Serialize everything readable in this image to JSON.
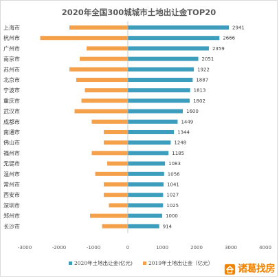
{
  "chart_data": {
    "type": "bar",
    "orientation": "horizontal",
    "title": "2020年全国300城城市土地出让金TOP20",
    "categories": [
      "上海市",
      "杭州市",
      "广州市",
      "南京市",
      "苏州市",
      "北京市",
      "宁波市",
      "重庆市",
      "武汉市",
      "成都市",
      "南通市",
      "佛山市",
      "福州市",
      "无锡市",
      "温州市",
      "常州市",
      "西安市",
      "深圳市",
      "郑州市",
      "长沙市"
    ],
    "series": [
      {
        "name": "2020年土地出让金(亿元)",
        "color": "#3c9dbd",
        "values": [
          2941,
          2666,
          2359,
          2051,
          1922,
          1887,
          1813,
          1802,
          1600,
          1449,
          1344,
          1248,
          1185,
          1083,
          1056,
          1041,
          1027,
          1025,
          1000,
          914
        ]
      },
      {
        "name": "2019年土地出让金（亿元）",
        "color": "#f5a04a",
        "values": [
          -1700,
          -2550,
          -1200,
          -1400,
          -1700,
          -1500,
          -1250,
          -1350,
          -1550,
          -1050,
          -700,
          -700,
          -1050,
          -600,
          -950,
          -700,
          -700,
          -550,
          -1100,
          -750
        ]
      }
    ],
    "xlim": [
      -3000,
      4000
    ],
    "xticks": [
      -3000,
      -2000,
      -1000,
      0,
      1000,
      2000,
      3000,
      4000
    ],
    "legend": "bottom",
    "grid": false
  },
  "brand": {
    "text": "诸葛找房",
    "icon": "house-logo-icon",
    "color": "#f08300"
  }
}
